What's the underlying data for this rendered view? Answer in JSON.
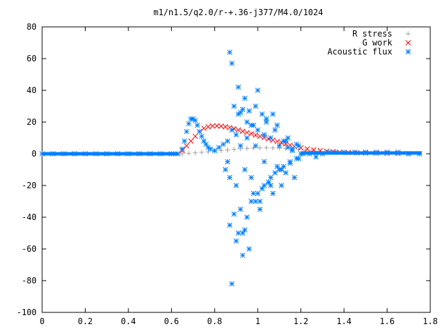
{
  "chart_data": {
    "type": "scatter",
    "title": "m1/n1.5/q2.0/r-+.36-j377/M4.0/1024",
    "xlabel": "",
    "ylabel": "",
    "xlim": [
      0,
      1.8
    ],
    "ylim": [
      -100,
      80
    ],
    "x_ticks": [
      "0",
      "0.2",
      "0.4",
      "0.6",
      "0.8",
      "1",
      "1.2",
      "1.4",
      "1.6",
      "1.8"
    ],
    "y_ticks": [
      "80",
      "60",
      "40",
      "20",
      "0",
      "-20",
      "-40",
      "-60",
      "-80",
      "-100"
    ],
    "grid": false,
    "legend_position": "top-right",
    "series": [
      {
        "name": "R stress",
        "marker": "+",
        "color": "#a0a0a0",
        "x": [
          0.65,
          0.68,
          0.71,
          0.74,
          0.77,
          0.8,
          0.83,
          0.86,
          0.89,
          0.92,
          0.95,
          0.98,
          1.01,
          1.04,
          1.07,
          1.1,
          1.13,
          1.16,
          1.19,
          1.22,
          1.25,
          1.28,
          1.31,
          1.34,
          1.37,
          1.4,
          1.43,
          1.46,
          1.5,
          1.55,
          1.6,
          1.65,
          1.7,
          1.75
        ],
        "y": [
          0,
          0.3,
          0.6,
          0.9,
          1.2,
          1.6,
          2,
          2.4,
          2.8,
          3.1,
          3.4,
          3.6,
          3.7,
          3.8,
          3.7,
          3.6,
          3.3,
          3,
          2.6,
          2.2,
          1.8,
          1.5,
          1.2,
          1,
          0.8,
          0.6,
          0.5,
          0.4,
          0.3,
          0.2,
          0.2,
          0.1,
          0.1,
          0.1
        ]
      },
      {
        "name": "G work",
        "marker": "x",
        "color": "#ff0000",
        "x": [
          0.65,
          0.67,
          0.69,
          0.71,
          0.73,
          0.75,
          0.77,
          0.79,
          0.81,
          0.83,
          0.85,
          0.87,
          0.89,
          0.91,
          0.93,
          0.95,
          0.97,
          0.99,
          1.01,
          1.03,
          1.05,
          1.07,
          1.09,
          1.11,
          1.13,
          1.15,
          1.17,
          1.2,
          1.23,
          1.26,
          1.29,
          1.32,
          1.35,
          1.38,
          1.42,
          1.46,
          1.5,
          1.55,
          1.6,
          1.65,
          1.7
        ],
        "y": [
          2,
          5,
          8,
          11,
          14,
          16,
          17,
          17.5,
          17.6,
          17.4,
          17,
          16.5,
          15.8,
          15,
          14.2,
          13.4,
          12.6,
          11.8,
          11,
          10.2,
          9.4,
          8.6,
          7.8,
          7,
          6.2,
          5.4,
          4.6,
          3.8,
          3.1,
          2.5,
          2,
          1.6,
          1.3,
          1,
          0.8,
          0.6,
          0.5,
          0.4,
          0.3,
          0.2,
          0.1
        ]
      },
      {
        "name": "Acoustic flux",
        "marker": "*",
        "color": "#0080ff",
        "x": [
          0,
          0.05,
          0.1,
          0.15,
          0.2,
          0.25,
          0.3,
          0.35,
          0.4,
          0.45,
          0.5,
          0.55,
          0.6,
          0.63,
          0.65,
          0.66,
          0.67,
          0.68,
          0.69,
          0.7,
          0.71,
          0.72,
          0.73,
          0.74,
          0.75,
          0.76,
          0.77,
          0.78,
          0.8,
          0.82,
          0.84,
          0.86,
          0.87,
          0.88,
          0.88,
          0.89,
          0.9,
          0.91,
          0.92,
          0.93,
          0.94,
          0.95,
          0.96,
          0.97,
          0.98,
          0.99,
          1,
          1.01,
          1.02,
          1.03,
          1.04,
          1.05,
          1.06,
          1.07,
          1.08,
          1.09,
          1.1,
          1.11,
          1.12,
          1.13,
          1.14,
          1.15,
          1.16,
          1.17,
          1.18,
          1.19,
          1.2,
          0.87,
          0.9,
          0.92,
          0.95,
          0.97,
          1,
          1.03,
          1.06,
          1.1,
          1.15,
          0.89,
          0.93,
          0.96,
          1.02,
          1.05,
          1.08,
          1.12,
          1.18,
          0.85,
          0.88,
          0.91,
          0.94,
          0.99,
          1.04,
          1.09,
          1.14,
          1.19,
          0.9,
          0.95,
          1,
          1.07,
          1.13,
          0.87,
          0.92,
          0.98,
          1.01,
          1.11,
          1.16,
          0.93,
          0.97,
          1.03,
          0.86,
          0.91,
          0.94,
          0.99,
          1.06,
          1.21,
          1.24,
          1.27,
          1.3,
          1.33,
          1.36,
          1.4,
          1.45,
          1.5,
          1.55,
          1.6,
          1.65,
          1.7,
          1.75
        ],
        "y": [
          0,
          0,
          0,
          0,
          0,
          0,
          0,
          0,
          0,
          0,
          0,
          0,
          0,
          0,
          3,
          8,
          14,
          19,
          22,
          22,
          21,
          18,
          14,
          11,
          8,
          6,
          4,
          3,
          2,
          4,
          6,
          8,
          64,
          57,
          -82,
          30,
          -20,
          42,
          26,
          -64,
          -10,
          10,
          27,
          -15,
          18,
          5,
          40,
          -30,
          25,
          -5,
          20,
          -18,
          10,
          -25,
          15,
          -8,
          5,
          -20,
          8,
          -12,
          4,
          -6,
          2,
          -15,
          6,
          -3,
          0,
          -45,
          -55,
          -35,
          -40,
          -30,
          -25,
          -20,
          -15,
          -10,
          -5,
          -38,
          -50,
          -60,
          -22,
          -18,
          -12,
          -8,
          -3,
          -10,
          15,
          25,
          35,
          30,
          22,
          18,
          10,
          5,
          12,
          20,
          15,
          25,
          8,
          -15,
          5,
          -25,
          -35,
          -10,
          3,
          28,
          18,
          12,
          -5,
          -50,
          -48,
          -30,
          -20,
          0,
          0,
          -2,
          0,
          1,
          1,
          1,
          1,
          1,
          1,
          1,
          1,
          0,
          0
        ]
      }
    ]
  }
}
